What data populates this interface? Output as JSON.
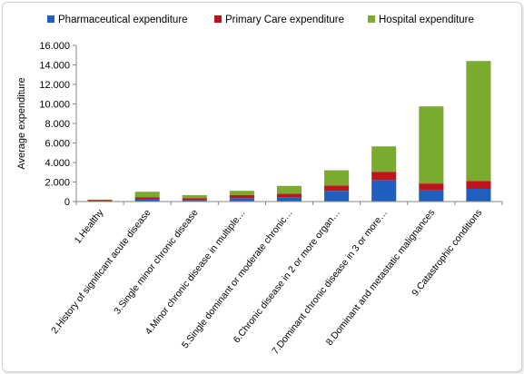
{
  "chart_data": {
    "type": "bar",
    "stacked": true,
    "title": "",
    "xlabel": "",
    "ylabel": "Average expenditure",
    "ylim": [
      0,
      16000
    ],
    "yticks": [
      0,
      2000,
      4000,
      6000,
      8000,
      10000,
      12000,
      14000,
      16000
    ],
    "ytick_labels": [
      "0",
      "2.000",
      "4.000",
      "6.000",
      "8.000",
      "10.000",
      "12.000",
      "14.000",
      "16.000"
    ],
    "grid": false,
    "legend_position": "top",
    "categories": [
      "1.Healthy",
      "2.History of significant acute disease",
      "3.Single minor chronic disease",
      "4.Minor chronic disease in multiple…",
      "5.Single dominant or moderate chronic…",
      "6.Chronic disease in 2 or more organ…",
      "7.Dominant chronic disease in 3 or more…",
      "8.Dominant and metastatic malignances",
      "9.Catastrophic conditions"
    ],
    "series": [
      {
        "name": "Pharmaceutical expenditure",
        "color": "#1f5fbf",
        "values": [
          40,
          200,
          150,
          350,
          450,
          1100,
          2200,
          1150,
          1300
        ]
      },
      {
        "name": "Primary Care expenditure",
        "color": "#c0141c",
        "values": [
          100,
          250,
          200,
          300,
          350,
          550,
          850,
          700,
          800
        ]
      },
      {
        "name": "Hospital expenditure",
        "color": "#7aab2e",
        "values": [
          60,
          550,
          300,
          450,
          800,
          1550,
          2600,
          7900,
          12300
        ]
      }
    ]
  }
}
